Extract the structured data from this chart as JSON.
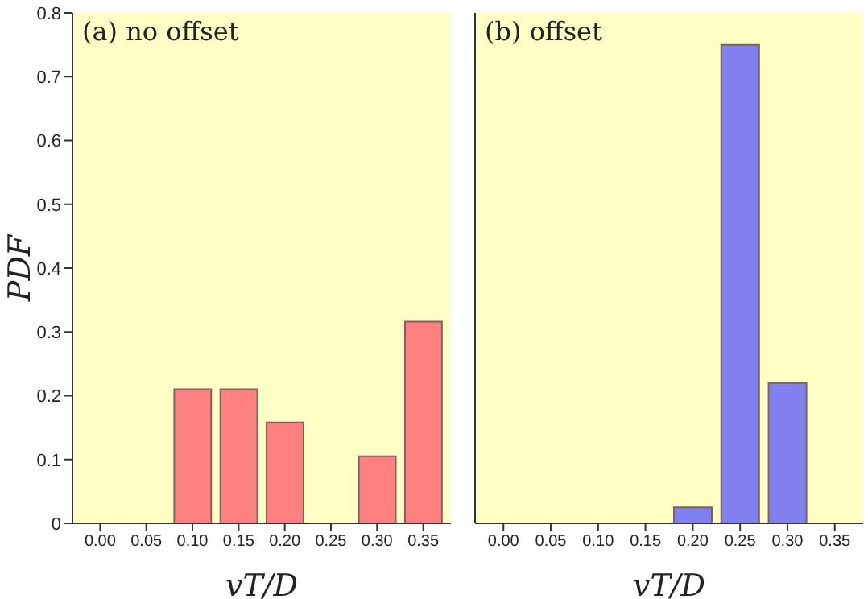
{
  "chart_data": [
    {
      "type": "bar",
      "title": "(a) no offset",
      "xlabel": "vT/D",
      "ylabel": "PDF",
      "x": [
        0.1,
        0.15,
        0.2,
        0.3,
        0.35
      ],
      "series": [
        {
          "color": "#ff8080",
          "values": [
            0.21,
            0.21,
            0.158,
            0.105,
            0.316
          ]
        }
      ],
      "xlim": [
        -0.03,
        0.38
      ],
      "xticks": [
        {
          "value": 0,
          "label": "0.00"
        },
        {
          "value": 0.05,
          "label": "0.05"
        },
        {
          "value": 0.1,
          "label": "0.10"
        },
        {
          "value": 0.15,
          "label": "0.15"
        },
        {
          "value": 0.2,
          "label": "0.20"
        },
        {
          "value": 0.25,
          "label": "0.25"
        },
        {
          "value": 0.3,
          "label": "0.30"
        },
        {
          "value": 0.35,
          "label": "0.35"
        }
      ],
      "ylim": [
        0,
        0.8
      ],
      "yticks": [
        0,
        0.1,
        0.2,
        0.3,
        0.4,
        0.5,
        0.6,
        0.7,
        0.8
      ]
    },
    {
      "type": "bar",
      "title": "(b) offset",
      "xlabel": "vT/D",
      "x": [
        0.2,
        0.25,
        0.3
      ],
      "series": [
        {
          "color": "#8080f0",
          "values": [
            0.025,
            0.75,
            0.22
          ]
        }
      ],
      "xlim": [
        -0.03,
        0.38
      ],
      "xticks": [
        {
          "value": 0,
          "label": "0.00"
        },
        {
          "value": 0.05,
          "label": "0.05"
        },
        {
          "value": 0.1,
          "label": "0.10"
        },
        {
          "value": 0.15,
          "label": "0.15"
        },
        {
          "value": 0.2,
          "label": "0.20"
        },
        {
          "value": 0.25,
          "label": "0.25"
        },
        {
          "value": 0.3,
          "label": "0.30"
        },
        {
          "value": 0.35,
          "label": "0.35"
        }
      ],
      "ylim": [
        0,
        0.8
      ],
      "yticks": [
        0,
        0.1,
        0.2,
        0.3,
        0.4,
        0.5,
        0.6,
        0.7,
        0.8
      ],
      "tick_labels": "x"
    }
  ]
}
